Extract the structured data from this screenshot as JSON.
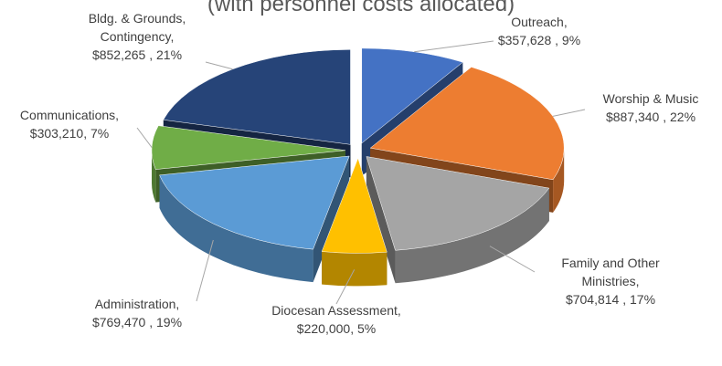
{
  "chart_data": {
    "type": "pie",
    "subtitle": "(with personnel costs allocated)",
    "categories": [
      "Outreach,",
      "Worship & Music",
      "Family and Other Ministries,",
      "Diocesan Assessment,",
      "Administration,",
      "Communications,",
      "Bldg. & Grounds, Contingency,"
    ],
    "values": [
      357628,
      887340,
      704814,
      220000,
      769470,
      303210,
      852265
    ],
    "value_labels": [
      "$357,628 , 9%",
      "$887,340 , 22%",
      "$704,814 , 17%",
      "$220,000, 5%",
      "$769,470 , 19%",
      "$303,210, 7%",
      "$852,265 , 21%"
    ],
    "colors": [
      "#4472c4",
      "#ed7d31",
      "#a5a5a5",
      "#ffc000",
      "#5b9bd5",
      "#70ad47",
      "#264478"
    ]
  }
}
